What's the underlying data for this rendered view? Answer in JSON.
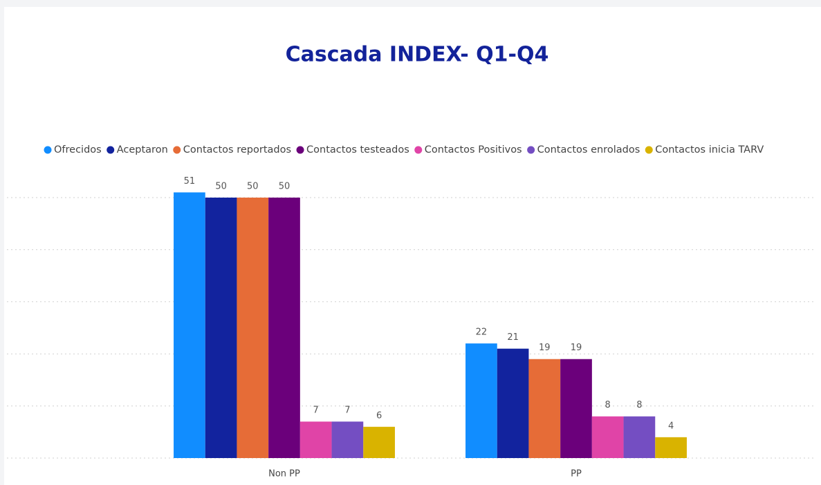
{
  "chart_data": {
    "type": "bar",
    "title": "Cascada INDEX- Q1-Q4",
    "categories": [
      "Non PP",
      "PP"
    ],
    "series": [
      {
        "name": "Ofrecidos",
        "color": "#118dff",
        "values": [
          51,
          22
        ]
      },
      {
        "name": "Aceptaron",
        "color": "#12239e",
        "values": [
          50,
          21
        ]
      },
      {
        "name": "Contactos reportados",
        "color": "#e66c37",
        "values": [
          50,
          19
        ]
      },
      {
        "name": "Contactos testeados",
        "color": "#6b007b",
        "values": [
          50,
          19
        ]
      },
      {
        "name": "Contactos Positivos",
        "color": "#e044a7",
        "values": [
          7,
          8
        ]
      },
      {
        "name": "Contactos enrolados",
        "color": "#744ec2",
        "values": [
          7,
          8
        ]
      },
      {
        "name": "Contactos inicia TARV",
        "color": "#d9b300",
        "values": [
          6,
          4
        ]
      }
    ],
    "ylim": [
      0,
      54
    ],
    "yticks": [
      0,
      10,
      20,
      30,
      40,
      50
    ],
    "grid": true,
    "legend": "top"
  }
}
